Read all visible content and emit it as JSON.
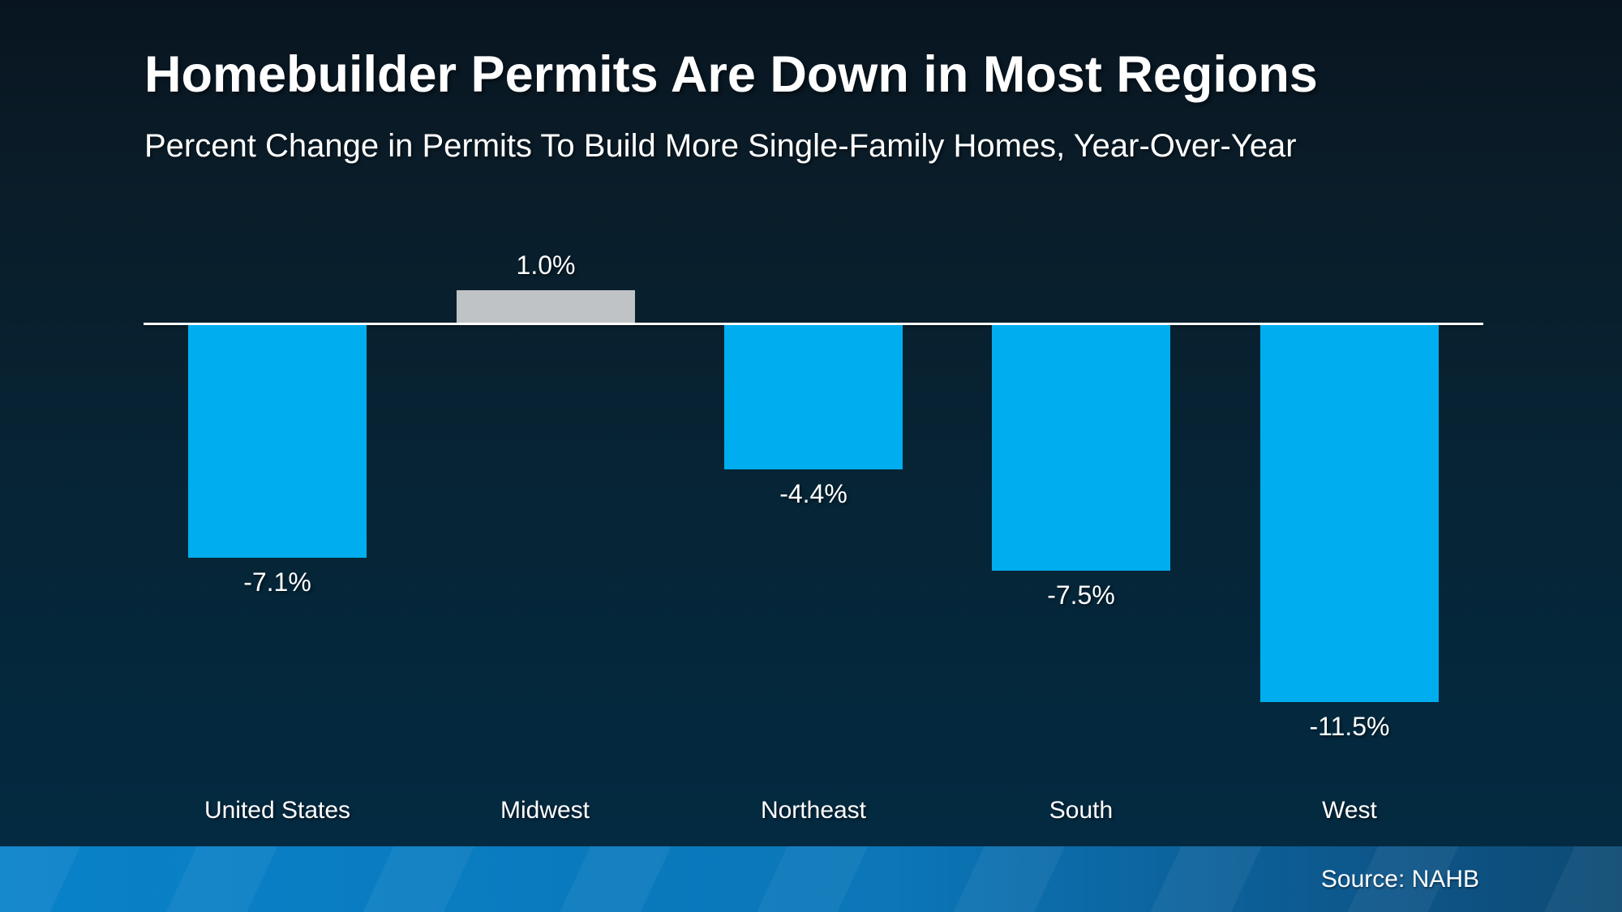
{
  "header": {
    "title": "Homebuilder Permits Are Down in Most Regions",
    "subtitle": "Percent Change in Permits To Build More Single-Family Homes, Year-Over-Year"
  },
  "footer": {
    "source": "Source: NAHB"
  },
  "chart_data": {
    "type": "bar",
    "title": "Homebuilder Permits Are Down in Most Regions",
    "subtitle": "Percent Change in Permits To Build More Single-Family Homes, Year-Over-Year",
    "categories": [
      "United States",
      "Midwest",
      "Northeast",
      "South",
      "West"
    ],
    "values": [
      -7.1,
      1.0,
      -4.4,
      -7.5,
      -11.5
    ],
    "value_labels": [
      "-7.1%",
      "1.0%",
      "-4.4%",
      "-7.5%",
      "-11.5%"
    ],
    "xlabel": "",
    "ylabel": "",
    "baseline": 0,
    "ylim": [
      -12,
      2
    ],
    "grid": false,
    "legend_position": "none",
    "orientation": "vertical",
    "annotation_source": "Source: NAHB"
  },
  "colors": {
    "negative_bar": "#00aeef",
    "positive_bar": "#bfc3c5",
    "axis_line": "#ffffff",
    "text": "#ffffff",
    "background_top": "#081520",
    "background_bottom": "#052c44",
    "footer_left": "#0982c9",
    "footer_right": "#0d4a73"
  }
}
